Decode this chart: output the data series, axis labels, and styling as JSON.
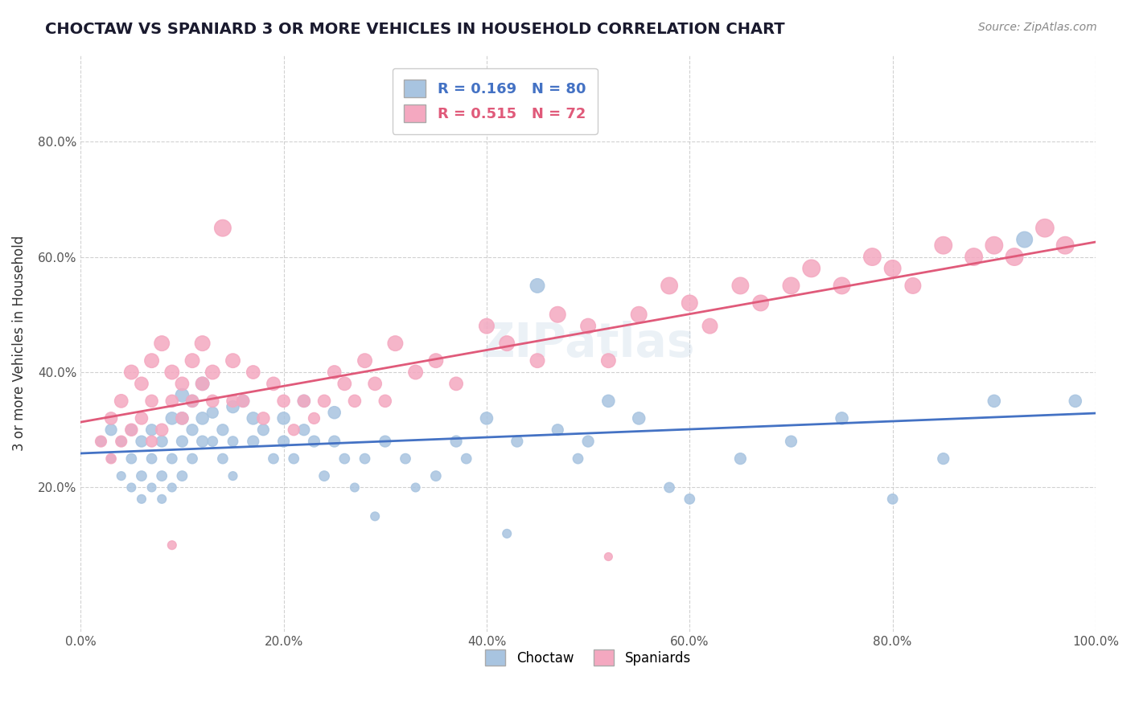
{
  "title": "CHOCTAW VS SPANIARD 3 OR MORE VEHICLES IN HOUSEHOLD CORRELATION CHART",
  "source_text": "Source: ZipAtlas.com",
  "ylabel": "3 or more Vehicles in Household",
  "xlim": [
    0.0,
    1.0
  ],
  "ylim": [
    -0.05,
    0.95
  ],
  "xtick_labels": [
    "0.0%",
    "20.0%",
    "40.0%",
    "60.0%",
    "80.0%",
    "100.0%"
  ],
  "xtick_vals": [
    0.0,
    0.2,
    0.4,
    0.6,
    0.8,
    1.0
  ],
  "ytick_labels": [
    "20.0%",
    "40.0%",
    "60.0%",
    "80.0%"
  ],
  "ytick_vals": [
    0.2,
    0.4,
    0.6,
    0.8
  ],
  "legend_label_choctaw": "R = 0.169   N = 80",
  "legend_label_spaniard": "R = 0.515   N = 72",
  "choctaw_color": "#a8c4e0",
  "spaniard_color": "#f4a8c0",
  "choctaw_line_color": "#4472c4",
  "spaniard_line_color": "#e05a7a",
  "watermark": "ZIPatlas",
  "choctaw_scatter_x": [
    0.02,
    0.03,
    0.03,
    0.04,
    0.04,
    0.05,
    0.05,
    0.05,
    0.06,
    0.06,
    0.06,
    0.07,
    0.07,
    0.07,
    0.08,
    0.08,
    0.08,
    0.09,
    0.09,
    0.09,
    0.1,
    0.1,
    0.1,
    0.1,
    0.11,
    0.11,
    0.11,
    0.12,
    0.12,
    0.12,
    0.13,
    0.13,
    0.14,
    0.14,
    0.15,
    0.15,
    0.15,
    0.16,
    0.17,
    0.17,
    0.18,
    0.19,
    0.2,
    0.2,
    0.21,
    0.22,
    0.22,
    0.23,
    0.24,
    0.25,
    0.25,
    0.26,
    0.27,
    0.28,
    0.29,
    0.3,
    0.32,
    0.33,
    0.35,
    0.37,
    0.38,
    0.4,
    0.42,
    0.43,
    0.45,
    0.47,
    0.49,
    0.5,
    0.52,
    0.55,
    0.58,
    0.6,
    0.65,
    0.7,
    0.75,
    0.8,
    0.85,
    0.9,
    0.93,
    0.98
  ],
  "choctaw_scatter_y": [
    0.28,
    0.25,
    0.3,
    0.22,
    0.28,
    0.2,
    0.25,
    0.3,
    0.18,
    0.22,
    0.28,
    0.2,
    0.25,
    0.3,
    0.18,
    0.22,
    0.28,
    0.2,
    0.25,
    0.32,
    0.22,
    0.28,
    0.32,
    0.36,
    0.25,
    0.3,
    0.35,
    0.28,
    0.32,
    0.38,
    0.28,
    0.33,
    0.25,
    0.3,
    0.22,
    0.28,
    0.34,
    0.35,
    0.28,
    0.32,
    0.3,
    0.25,
    0.28,
    0.32,
    0.25,
    0.3,
    0.35,
    0.28,
    0.22,
    0.28,
    0.33,
    0.25,
    0.2,
    0.25,
    0.15,
    0.28,
    0.25,
    0.2,
    0.22,
    0.28,
    0.25,
    0.32,
    0.12,
    0.28,
    0.55,
    0.3,
    0.25,
    0.28,
    0.35,
    0.32,
    0.2,
    0.18,
    0.25,
    0.28,
    0.32,
    0.18,
    0.25,
    0.35,
    0.63,
    0.35
  ],
  "spaniard_scatter_x": [
    0.02,
    0.03,
    0.03,
    0.04,
    0.04,
    0.05,
    0.05,
    0.06,
    0.06,
    0.07,
    0.07,
    0.07,
    0.08,
    0.08,
    0.09,
    0.09,
    0.1,
    0.1,
    0.11,
    0.11,
    0.12,
    0.12,
    0.13,
    0.13,
    0.14,
    0.15,
    0.15,
    0.16,
    0.17,
    0.18,
    0.19,
    0.2,
    0.21,
    0.22,
    0.23,
    0.24,
    0.25,
    0.26,
    0.27,
    0.28,
    0.29,
    0.3,
    0.31,
    0.33,
    0.35,
    0.37,
    0.4,
    0.42,
    0.45,
    0.47,
    0.5,
    0.52,
    0.55,
    0.58,
    0.6,
    0.62,
    0.65,
    0.67,
    0.7,
    0.72,
    0.75,
    0.78,
    0.8,
    0.82,
    0.85,
    0.88,
    0.9,
    0.92,
    0.95,
    0.97,
    0.09,
    0.52
  ],
  "spaniard_scatter_y": [
    0.28,
    0.32,
    0.25,
    0.35,
    0.28,
    0.3,
    0.4,
    0.32,
    0.38,
    0.28,
    0.35,
    0.42,
    0.3,
    0.45,
    0.35,
    0.4,
    0.32,
    0.38,
    0.35,
    0.42,
    0.38,
    0.45,
    0.35,
    0.4,
    0.65,
    0.35,
    0.42,
    0.35,
    0.4,
    0.32,
    0.38,
    0.35,
    0.3,
    0.35,
    0.32,
    0.35,
    0.4,
    0.38,
    0.35,
    0.42,
    0.38,
    0.35,
    0.45,
    0.4,
    0.42,
    0.38,
    0.48,
    0.45,
    0.42,
    0.5,
    0.48,
    0.42,
    0.5,
    0.55,
    0.52,
    0.48,
    0.55,
    0.52,
    0.55,
    0.58,
    0.55,
    0.6,
    0.58,
    0.55,
    0.62,
    0.6,
    0.62,
    0.6,
    0.65,
    0.62,
    0.1,
    0.08
  ],
  "choctaw_bubble_sizes": [
    80,
    60,
    100,
    60,
    80,
    60,
    80,
    100,
    60,
    80,
    100,
    60,
    80,
    100,
    60,
    80,
    100,
    60,
    80,
    120,
    80,
    100,
    120,
    140,
    80,
    100,
    120,
    100,
    120,
    140,
    80,
    100,
    80,
    100,
    60,
    80,
    120,
    120,
    100,
    120,
    100,
    80,
    100,
    120,
    80,
    100,
    120,
    100,
    80,
    100,
    120,
    80,
    60,
    80,
    60,
    100,
    80,
    60,
    80,
    100,
    80,
    120,
    60,
    100,
    160,
    100,
    80,
    100,
    120,
    120,
    80,
    80,
    100,
    100,
    120,
    80,
    100,
    120,
    200,
    120
  ],
  "spaniard_bubble_sizes": [
    100,
    120,
    80,
    140,
    100,
    120,
    160,
    120,
    140,
    100,
    120,
    160,
    120,
    180,
    120,
    160,
    120,
    140,
    120,
    160,
    140,
    180,
    120,
    160,
    220,
    120,
    160,
    120,
    140,
    120,
    140,
    120,
    100,
    120,
    100,
    120,
    140,
    140,
    120,
    160,
    140,
    120,
    180,
    160,
    160,
    140,
    180,
    180,
    160,
    200,
    180,
    160,
    200,
    220,
    200,
    180,
    220,
    200,
    220,
    240,
    220,
    240,
    220,
    200,
    240,
    240,
    240,
    240,
    260,
    240,
    60,
    50
  ]
}
